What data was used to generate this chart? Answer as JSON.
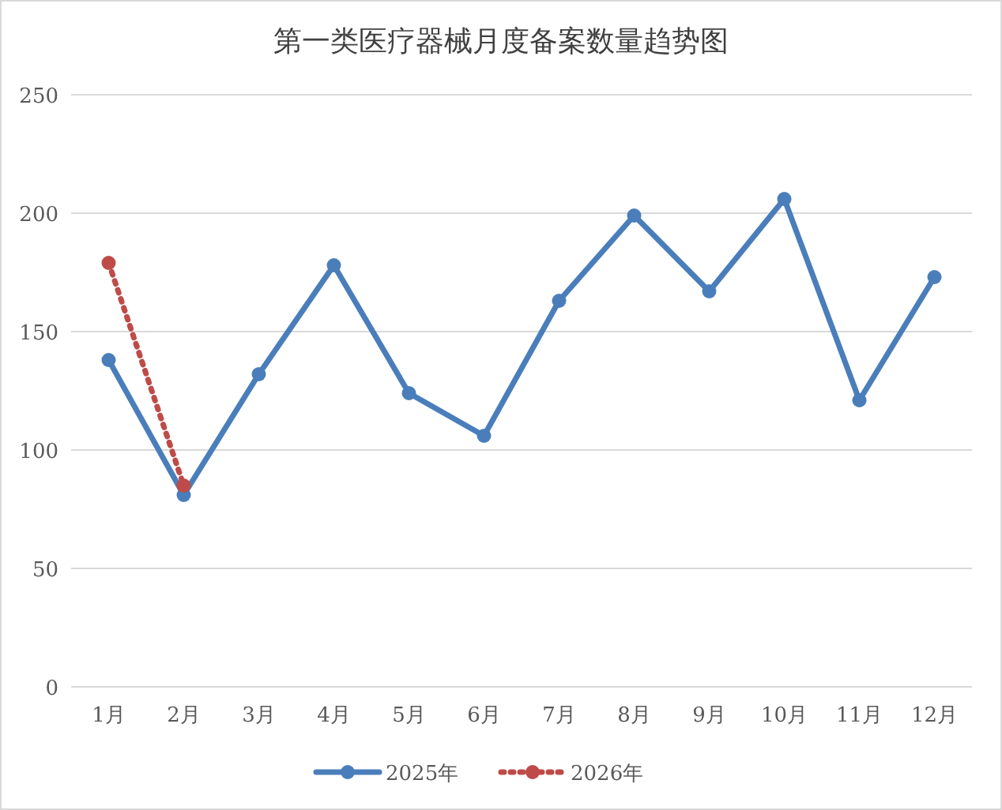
{
  "chart_data": {
    "type": "line",
    "title": "第一类医疗器械月度备案数量趋势图",
    "categories": [
      "1月",
      "2月",
      "3月",
      "4月",
      "5月",
      "6月",
      "7月",
      "8月",
      "9月",
      "10月",
      "11月",
      "12月"
    ],
    "series": [
      {
        "name": "2025年",
        "color": "#4a7ebb",
        "line_style": "solid",
        "values": [
          138,
          81,
          132,
          178,
          124,
          106,
          163,
          199,
          167,
          206,
          121,
          173
        ]
      },
      {
        "name": "2026年",
        "color": "#be4b48",
        "line_style": "dotted",
        "values": [
          179,
          85,
          null,
          null,
          null,
          null,
          null,
          null,
          null,
          null,
          null,
          null
        ]
      }
    ],
    "ylim": [
      0,
      250
    ],
    "yticks": [
      0,
      50,
      100,
      150,
      200,
      250
    ],
    "grid": "y",
    "legend": "bottom",
    "marker": "circle"
  }
}
